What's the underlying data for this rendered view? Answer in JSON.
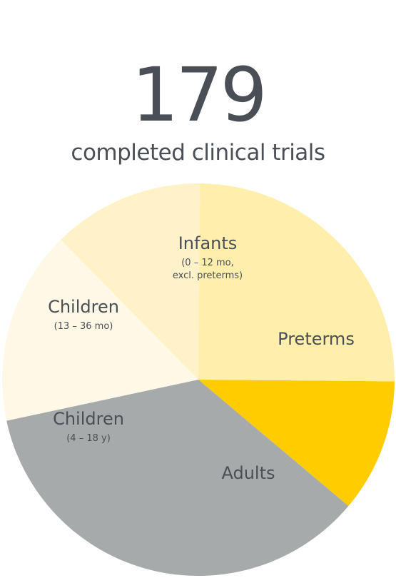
{
  "header": {
    "count": "179",
    "caption": "completed clinical trials"
  },
  "chart_data": {
    "type": "pie",
    "title": "",
    "slices": [
      {
        "label": "Preterms",
        "sublabel": "",
        "value": 0.11,
        "color": "#ffcc00"
      },
      {
        "label": "Adults",
        "sublabel": "",
        "value": 0.355,
        "color": "#a7aaab"
      },
      {
        "label": "Children",
        "sublabel": "(4 – 18 y)",
        "value": 0.16,
        "color": "#fff8e6"
      },
      {
        "label": "Children",
        "sublabel": "(13 – 36 mo)",
        "value": 0.125,
        "color": "#fff1c8"
      },
      {
        "label": "Infants",
        "sublabel": "(0 – 12 mo,\nexcl. preterms)",
        "value": 0.25,
        "color": "#ffeeac"
      }
    ]
  }
}
